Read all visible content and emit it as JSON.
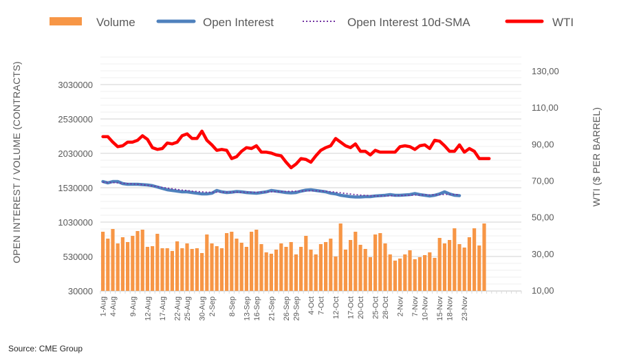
{
  "chart_data": {
    "type": "bar",
    "title": "",
    "source": "Source: CME Group",
    "legend": {
      "placement": "top",
      "entries": [
        {
          "name": "Volume",
          "type": "bar",
          "color": "#F79646"
        },
        {
          "name": "Open Interest",
          "type": "line",
          "color": "#4F81BD"
        },
        {
          "name": "Open Interest 10d-SMA",
          "type": "dotted-line",
          "color": "#7030A0"
        },
        {
          "name": "WTI",
          "type": "line",
          "color": "#FF0000"
        }
      ]
    },
    "y_left": {
      "label": "OPEN INTEREST / VOLUME (CONTRACTS)",
      "range": [
        30000,
        3430000
      ],
      "ticks": [
        "30000",
        "530000",
        "1030000",
        "1530000",
        "2030000",
        "2530000",
        "3030000"
      ],
      "tick_values": [
        30000,
        530000,
        1030000,
        1530000,
        2030000,
        2530000,
        3030000
      ]
    },
    "y_right": {
      "label": "WTI ($ PER BARREL)",
      "range": [
        10,
        130
      ],
      "ticks": [
        "10,00",
        "30,00",
        "50,00",
        "70,00",
        "90,00",
        "110,00",
        "130,00"
      ],
      "tick_values": [
        10,
        30,
        50,
        70,
        90,
        110,
        130
      ]
    },
    "x_axis": {
      "slot_count": 85,
      "tick_labels": [
        "1-Aug",
        "4-Aug",
        "9-Aug",
        "12-Aug",
        "17-Aug",
        "22-Aug",
        "25-Aug",
        "30-Aug",
        "2-Sep",
        "8-Sep",
        "13-Sep",
        "16-Sep",
        "21-Sep",
        "26-Sep",
        "29-Sep",
        "4-Oct",
        "7-Oct",
        "12-Oct",
        "17-Oct",
        "20-Oct",
        "25-Oct",
        "28-Oct",
        "2-Nov",
        "7-Nov",
        "10-Nov",
        "15-Nov",
        "18-Nov",
        "23-Nov"
      ]
    },
    "grid": true,
    "series": [
      {
        "name": "Volume",
        "axis": "left",
        "values": [
          890000,
          790000,
          930000,
          720000,
          810000,
          740000,
          830000,
          900000,
          920000,
          670000,
          680000,
          860000,
          650000,
          650000,
          610000,
          750000,
          650000,
          720000,
          640000,
          650000,
          580000,
          850000,
          720000,
          680000,
          650000,
          870000,
          890000,
          790000,
          730000,
          670000,
          890000,
          920000,
          710000,
          590000,
          570000,
          630000,
          720000,
          670000,
          740000,
          560000,
          670000,
          830000,
          630000,
          560000,
          710000,
          740000,
          790000,
          530000,
          1010000,
          630000,
          770000,
          890000,
          700000,
          640000,
          520000,
          850000,
          870000,
          720000,
          560000,
          470000,
          500000,
          560000,
          620000,
          490000,
          520000,
          550000,
          590000,
          510000,
          800000,
          720000,
          770000,
          940000,
          710000,
          660000,
          810000,
          940000,
          690000,
          1010000,
          null
        ]
      },
      {
        "name": "Open Interest",
        "axis": "left",
        "values": [
          1620000,
          1600000,
          1620000,
          1620000,
          1590000,
          1580000,
          1580000,
          1580000,
          1575000,
          1570000,
          1560000,
          1540000,
          1520000,
          1500000,
          1490000,
          1480000,
          1470000,
          1470000,
          1460000,
          1450000,
          1440000,
          1440000,
          1450000,
          1490000,
          1470000,
          1460000,
          1465000,
          1475000,
          1470000,
          1460000,
          1455000,
          1450000,
          1460000,
          1470000,
          1490000,
          1480000,
          1470000,
          1460000,
          1455000,
          1460000,
          1480000,
          1495000,
          1500000,
          1490000,
          1480000,
          1470000,
          1450000,
          1440000,
          1420000,
          1410000,
          1400000,
          1395000,
          1395000,
          1400000,
          1400000,
          1410000,
          1415000,
          1420000,
          1430000,
          1420000,
          1420000,
          1425000,
          1430000,
          1445000,
          1430000,
          1420000,
          1410000,
          1420000,
          1440000,
          1470000,
          1440000,
          1420000,
          1415000
        ]
      },
      {
        "name": "Open Interest 10d-SMA",
        "axis": "left",
        "values": [
          1610000,
          1605000,
          1605000,
          1600000,
          1595000,
          1590000,
          1585000,
          1580000,
          1575000,
          1565000,
          1555000,
          1545000,
          1535000,
          1525000,
          1515000,
          1505000,
          1495000,
          1490000,
          1480000,
          1475000,
          1470000,
          1465000,
          1465000,
          1465000,
          1465000,
          1465000,
          1465000,
          1465000,
          1465000,
          1465000,
          1465000,
          1465000,
          1465000,
          1468000,
          1470000,
          1472000,
          1474000,
          1476000,
          1478000,
          1480000,
          1482000,
          1484000,
          1485000,
          1485000,
          1482000,
          1478000,
          1472000,
          1465000,
          1456000,
          1447000,
          1438000,
          1430000,
          1423000,
          1418000,
          1414000,
          1411000,
          1410000,
          1410000,
          1412000,
          1414000,
          1416000,
          1418000,
          1420000,
          1423000,
          1425000,
          1426000,
          1426000,
          1426000,
          1428000,
          1432000,
          1434000,
          1432000,
          1430000
        ]
      },
      {
        "name": "WTI",
        "axis": "right",
        "values": [
          94.0,
          94.0,
          91.0,
          88.5,
          89.0,
          91.0,
          91.0,
          92.0,
          94.5,
          92.5,
          88.0,
          87.0,
          87.5,
          90.5,
          90.0,
          91.0,
          94.5,
          95.5,
          93.0,
          93.0,
          97.0,
          92.0,
          89.5,
          86.5,
          87.0,
          86.5,
          82.0,
          83.0,
          86.0,
          88.0,
          87.5,
          89.0,
          85.5,
          85.5,
          85.0,
          84.0,
          83.5,
          80.0,
          77.0,
          79.0,
          82.0,
          81.5,
          80.0,
          83.5,
          86.5,
          88.0,
          89.0,
          93.0,
          91.0,
          89.0,
          88.0,
          90.0,
          86.0,
          86.0,
          84.0,
          86.5,
          85.5,
          85.5,
          85.5,
          85.5,
          88.5,
          89.0,
          88.5,
          87.0,
          89.0,
          89.5,
          87.5,
          92.0,
          91.5,
          89.0,
          86.0,
          86.0,
          89.5,
          85.5,
          87.5,
          86.0,
          82.0,
          82.0,
          82.0
        ]
      }
    ]
  }
}
